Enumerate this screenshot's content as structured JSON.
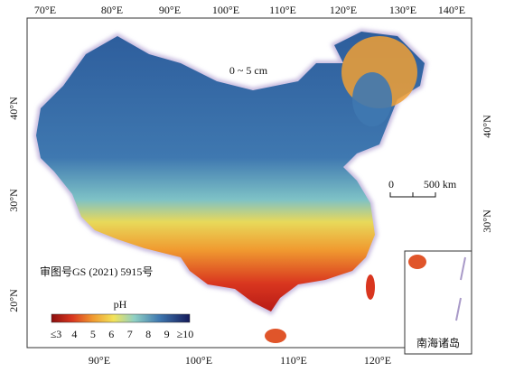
{
  "map": {
    "depth_label": "0 ~ 5 cm",
    "approval": "审图号GS (2021) 5915号",
    "inset_label": "南海诸岛"
  },
  "axes": {
    "top": [
      "70°E",
      "80°E",
      "90°E",
      "100°E",
      "110°E",
      "120°E",
      "130°E",
      "140°E"
    ],
    "bottom": [
      "90°E",
      "100°E",
      "110°E",
      "120°E"
    ],
    "left": [
      "40°N",
      "30°N",
      "20°N"
    ],
    "right": [
      "40°N",
      "30°N"
    ]
  },
  "scale_bar": {
    "zero": "0",
    "length": "500 km"
  },
  "legend": {
    "title": "pH",
    "labels": [
      "≤3",
      "4",
      "5",
      "6",
      "7",
      "8",
      "9",
      "≥10"
    ]
  }
}
